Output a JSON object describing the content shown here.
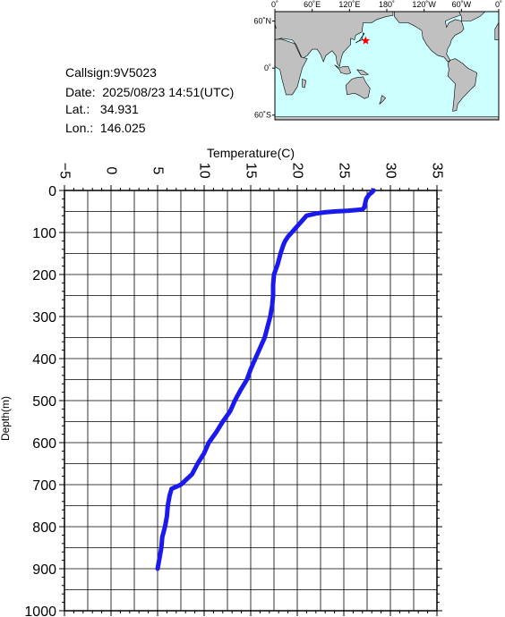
{
  "info": {
    "callsign": "Callsign:9V5023",
    "date": "Date:  2025/08/23 14:51(UTC)",
    "lat": "Lat.:   34.931",
    "lon": "Lon.:  146.025"
  },
  "map": {
    "lon_labels": [
      "0˚",
      "60˚E",
      "120˚E",
      "180˚",
      "120˚W",
      "60˚W",
      "0˚"
    ],
    "lat_labels": [
      "60˚N",
      "0˚",
      "60˚S"
    ],
    "ocean_color": "#ccffff",
    "land_color": "#c0c0c0",
    "marker_color": "#ff0000",
    "marker": {
      "lon": 146.025,
      "lat": 34.931
    }
  },
  "chart_data": {
    "type": "line",
    "xlabel": "Temperature(C)",
    "ylabel": "Depth(m)",
    "xlim": [
      -5,
      35
    ],
    "ylim": [
      0,
      1000
    ],
    "x_ticks": [
      -5,
      0,
      5,
      10,
      15,
      20,
      25,
      30,
      35
    ],
    "y_ticks": [
      0,
      100,
      200,
      300,
      400,
      500,
      600,
      700,
      800,
      900,
      1000
    ],
    "grid": true,
    "y_inverted": true,
    "line_color": "#1a1aee",
    "series": [
      {
        "depth": [
          0,
          5,
          10,
          20,
          30,
          40,
          45,
          48,
          50,
          52,
          55,
          60,
          70,
          80,
          90,
          100,
          110,
          120,
          130,
          150,
          175,
          200,
          225,
          250,
          275,
          300,
          325,
          350,
          375,
          400,
          425,
          450,
          475,
          500,
          525,
          550,
          575,
          600,
          625,
          650,
          675,
          700,
          710,
          725,
          750,
          775,
          800,
          825,
          850,
          875,
          900
        ],
        "temperature": [
          28.2,
          28.0,
          27.7,
          27.4,
          27.3,
          27.2,
          27.0,
          25.5,
          24.0,
          23.0,
          22.0,
          21.0,
          20.6,
          20.2,
          19.8,
          19.4,
          19.0,
          18.7,
          18.5,
          18.2,
          17.9,
          17.5,
          17.4,
          17.4,
          17.3,
          17.1,
          16.8,
          16.5,
          16.0,
          15.5,
          15.0,
          14.6,
          13.9,
          13.3,
          12.8,
          12.0,
          11.3,
          10.5,
          10.0,
          9.3,
          8.7,
          7.5,
          6.5,
          6.3,
          6.1,
          6.0,
          5.8,
          5.5,
          5.4,
          5.2,
          5.0
        ]
      }
    ]
  }
}
